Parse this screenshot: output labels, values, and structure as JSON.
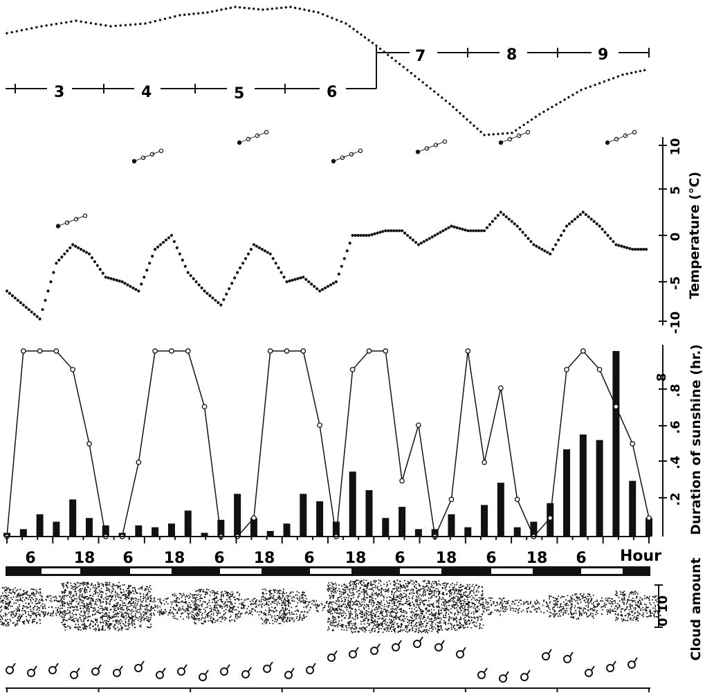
{
  "chart_data": {
    "type": "line",
    "days": [
      "3",
      "4",
      "5",
      "6",
      "7",
      "8",
      "9"
    ],
    "hour_ticks": [
      "6",
      "18",
      "6",
      "18",
      "6",
      "18",
      "6",
      "18",
      "6",
      "18",
      "6",
      "18",
      "6"
    ],
    "hour_label": "Hour",
    "temperature": {
      "ylabel": "Temperature (°C)",
      "ticks": [
        "10",
        "5",
        "0",
        "-5",
        "-10"
      ],
      "ylim": [
        -10,
        10
      ],
      "series": [
        {
          "values": [
            -6,
            -7.5,
            -9,
            -3,
            -1,
            -2,
            -4.5,
            -5,
            -6,
            -1.5,
            0,
            -4,
            -6,
            -7.5,
            -4,
            -1,
            -2,
            -5,
            -4.5,
            -6,
            -5,
            0,
            0,
            0.5,
            0.5,
            -1,
            0,
            1,
            0.5,
            0.5,
            2.5,
            1,
            -1,
            -2,
            1,
            2.5,
            1,
            -1,
            -1.5,
            -1.5
          ]
        },
        {
          "values": [
            1,
            8,
            10,
            8,
            9,
            10,
            10,
            10,
            9,
            7
          ]
        }
      ]
    },
    "sunshine": {
      "ylabel": "Duration of sunshine (hr.)",
      "ticks": [
        "8",
        ".8",
        ".6",
        ".4",
        ".2"
      ],
      "ylim": [
        0,
        1
      ],
      "series": [
        {
          "values": [
            0,
            1,
            1,
            1,
            0.9,
            0.5,
            0,
            0,
            0.4,
            1,
            1,
            1,
            0.7,
            0,
            0,
            0.1,
            1,
            1,
            1,
            0.6,
            0,
            0.9,
            1,
            1,
            0.3,
            0.6,
            0,
            0.2,
            1,
            0.4,
            0.8,
            0.2,
            0,
            0.1,
            0.9,
            1,
            0.9,
            0.7,
            0.5,
            0.1
          ]
        },
        {
          "values": [
            0.02,
            0.04,
            0.12,
            0.08,
            0.2,
            0.1,
            0.06,
            0.02,
            0.06,
            0.05,
            0.07,
            0.14,
            0.02,
            0.09,
            0.23,
            0.1,
            0.03,
            0.07,
            0.23,
            0.19,
            0.08,
            0.35,
            0.25,
            0.1,
            0.16,
            0.04,
            0.04,
            0.12,
            0.05,
            0.17,
            0.29,
            0.05,
            0.08,
            0.18,
            0.47,
            0.55,
            0.52,
            1,
            0.3,
            0.1
          ]
        }
      ]
    },
    "cloud": {
      "ylabel": "Cloud amount",
      "ticks": [
        "0",
        "10"
      ],
      "values": [
        7,
        6,
        3,
        9,
        9,
        9,
        8,
        2,
        4,
        6,
        5,
        2,
        6,
        5,
        1,
        9,
        10,
        10,
        10,
        10,
        9,
        8,
        2,
        1,
        1,
        3,
        4,
        2,
        5,
        3
      ]
    }
  }
}
